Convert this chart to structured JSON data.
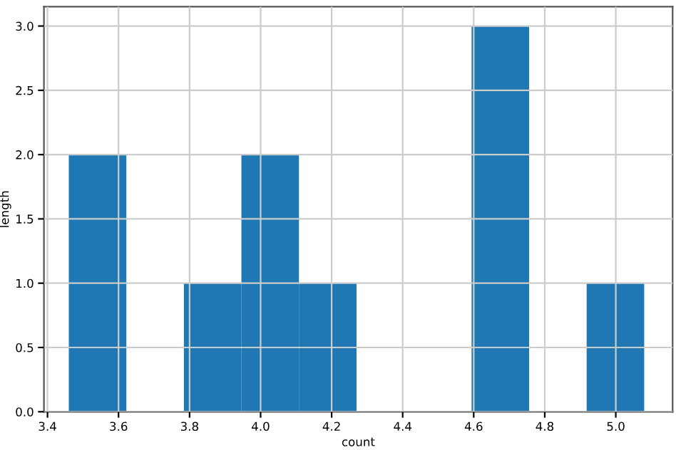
{
  "chart_data": {
    "type": "histogram",
    "xlabel": "count",
    "ylabel": "length",
    "bins": [
      3.46,
      3.622,
      3.784,
      3.946,
      4.108,
      4.27,
      4.432,
      4.594,
      4.756,
      4.918,
      5.08
    ],
    "values": [
      2,
      0,
      1,
      2,
      1,
      0,
      0,
      3,
      0,
      1
    ],
    "color": "#1f77b4",
    "xlim": [
      3.39,
      5.16
    ],
    "ylim": [
      0,
      3.15
    ],
    "xticks": [
      {
        "value": 3.4,
        "label": "3.4"
      },
      {
        "value": 3.6,
        "label": "3.6"
      },
      {
        "value": 3.8,
        "label": "3.8"
      },
      {
        "value": 4.0,
        "label": "4.0"
      },
      {
        "value": 4.2,
        "label": "4.2"
      },
      {
        "value": 4.4,
        "label": "4.4"
      },
      {
        "value": 4.6,
        "label": "4.6"
      },
      {
        "value": 4.8,
        "label": "4.8"
      },
      {
        "value": 5.0,
        "label": "5.0"
      }
    ],
    "yticks": [
      {
        "value": 0,
        "label": "0.0"
      },
      {
        "value": 0.5,
        "label": "0.5"
      },
      {
        "value": 1,
        "label": "1.0"
      },
      {
        "value": 1.5,
        "label": "1.5"
      },
      {
        "value": 2,
        "label": "2.0"
      },
      {
        "value": 2.5,
        "label": "2.5"
      },
      {
        "value": 3,
        "label": "3.0"
      }
    ],
    "grid": true
  }
}
